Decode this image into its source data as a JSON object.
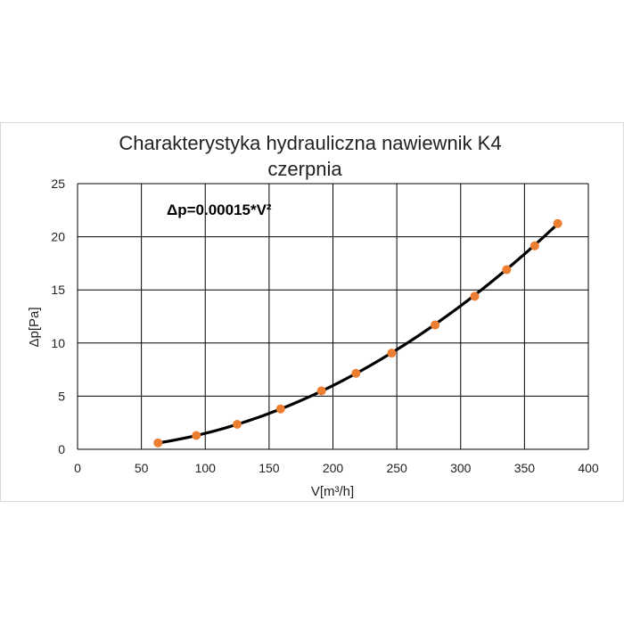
{
  "chart_data": {
    "type": "scatter",
    "title_lines": [
      "Charakterystyka hydrauliczna nawiewnik K4",
      "czerpnia"
    ],
    "xlabel": "V[m³/h]",
    "ylabel": "Δp[Pa]",
    "xlim": [
      0,
      400
    ],
    "ylim": [
      0,
      25
    ],
    "x_ticks": [
      "0",
      "50",
      "100",
      "150",
      "200",
      "250",
      "300",
      "350",
      "400"
    ],
    "y_ticks": [
      "0",
      "5",
      "10",
      "15",
      "20",
      "25"
    ],
    "grid": true,
    "legend": "none",
    "annotation": "Δp=0.00015*V²",
    "trendline": {
      "coefficient": 0.00015,
      "exponent": 2,
      "color": "#000000"
    },
    "series": [
      {
        "marker_color": "#ED7D31",
        "x": [
          63,
          93,
          125,
          159,
          191,
          218,
          246,
          280,
          311,
          336,
          358,
          376
        ],
        "y": [
          0.6,
          1.3,
          2.35,
          3.8,
          5.5,
          7.15,
          9.05,
          11.7,
          14.4,
          16.9,
          19.15,
          21.25
        ]
      }
    ]
  }
}
